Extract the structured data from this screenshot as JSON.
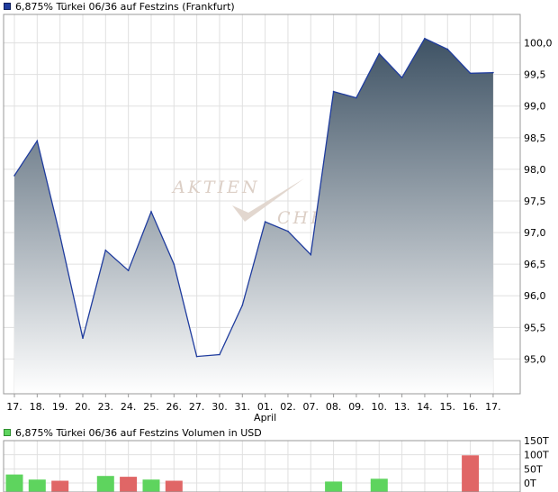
{
  "price_legend": {
    "label": "6,875% Türkei 06/36 auf Festzins (Frankfurt)",
    "color": "#1f3c9e"
  },
  "volume_legend": {
    "label": "6,875% Türkei 06/36 auf Festzins Volumen in USD",
    "color": "#5ed45e"
  },
  "watermark": {
    "line1": "AKTIEN",
    "line2": "CHE"
  },
  "chart_data": [
    {
      "type": "area",
      "categories": [
        "17.",
        "18.",
        "19.",
        "20.",
        "23.",
        "24.",
        "25.",
        "26.",
        "27.",
        "30.",
        "31.",
        "01.",
        "02.",
        "07.",
        "08.",
        "09.",
        "10.",
        "13.",
        "14.",
        "15.",
        "16.",
        "17."
      ],
      "month_label": "April",
      "month_label_under": "01.",
      "values": [
        97.9,
        98.45,
        96.95,
        95.33,
        96.72,
        96.4,
        97.33,
        96.5,
        95.04,
        95.07,
        95.85,
        97.17,
        97.02,
        96.65,
        99.23,
        99.13,
        99.83,
        99.45,
        100.07,
        99.9,
        99.52,
        99.53
      ],
      "ylim": [
        94.45,
        100.45
      ],
      "yticks": [
        95.0,
        95.5,
        96.0,
        96.5,
        97.0,
        97.5,
        98.0,
        98.5,
        99.0,
        99.5,
        100.0
      ],
      "ytick_labels": [
        "95,0",
        "95,5",
        "96,0",
        "96,5",
        "97,0",
        "97,5",
        "98,0",
        "98,5",
        "99,0",
        "99,5",
        "100,0"
      ],
      "line_color": "#1f3c9e",
      "fill_top": "#3e5264",
      "fill_bottom": "#ffffff",
      "grid": true
    },
    {
      "type": "bar",
      "values": [
        30,
        12,
        8,
        0,
        25,
        22,
        12,
        8,
        0,
        0,
        0,
        0,
        0,
        0,
        5,
        0,
        15,
        0,
        0,
        0,
        98,
        0
      ],
      "colors": [
        "#5ed45e",
        "#5ed45e",
        "#e06666",
        "#5ed45e",
        "#5ed45e",
        "#e06666",
        "#5ed45e",
        "#e06666",
        "#5ed45e",
        "#5ed45e",
        "#5ed45e",
        "#5ed45e",
        "#5ed45e",
        "#5ed45e",
        "#5ed45e",
        "#5ed45e",
        "#5ed45e",
        "#5ed45e",
        "#5ed45e",
        "#5ed45e",
        "#e06666",
        "#5ed45e"
      ],
      "ylim": [
        0,
        150
      ],
      "yticks": [
        0,
        50,
        100,
        150
      ],
      "ytick_labels": [
        "0T",
        "50T",
        "100T",
        "150T"
      ],
      "grid": true
    }
  ]
}
